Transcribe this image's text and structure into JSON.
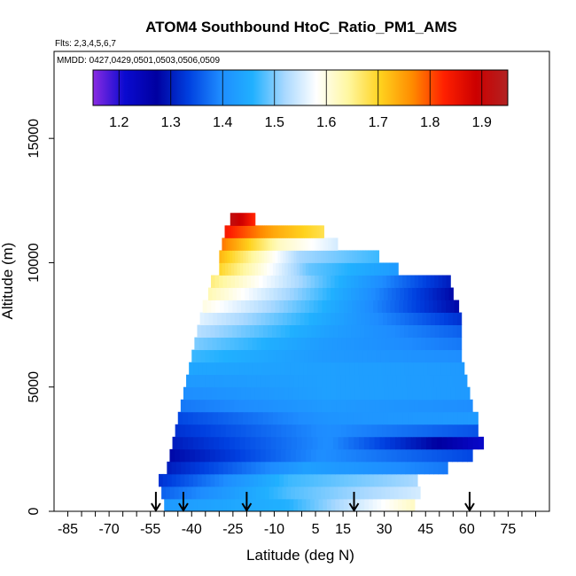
{
  "chart_data": {
    "type": "heatmap",
    "title": "ATOM4 Southbound HtoC_Ratio_PM1_AMS",
    "flights_note": "Flts: 2,3,4,5,6,7",
    "dates_note": "MMDD: 0427,0429,0501,0503,0506,0509",
    "xlabel": "Latitude (deg N)",
    "ylabel": "Altitude (m)",
    "xlim": [
      -90,
      90
    ],
    "ylim": [
      0,
      18500
    ],
    "x_ticks": [
      -85,
      -70,
      -55,
      -40,
      -25,
      -10,
      5,
      15,
      30,
      45,
      60,
      75
    ],
    "y_ticks": [
      0,
      5000,
      10000,
      15000
    ],
    "colorbar": {
      "min": 1.15,
      "max": 1.95,
      "ticks": [
        "1.2",
        "1.3",
        "1.4",
        "1.5",
        "1.6",
        "1.7",
        "1.8",
        "1.9"
      ],
      "colors": [
        "#8a2be2",
        "#0a0ad0",
        "#0000a0",
        "#0040e0",
        "#1e8cff",
        "#20b0ff",
        "#a8d8ff",
        "#ffffff",
        "#fff7a0",
        "#ffd21e",
        "#ff8c00",
        "#ff2000",
        "#cc0000",
        "#b22222"
      ]
    },
    "arrows_latitude": [
      -53,
      -43,
      -20,
      19,
      61
    ],
    "altitude_bands": [
      {
        "alt": 250,
        "lat_min": -50,
        "lat_max": 41,
        "left_value": 1.42,
        "mid_value": 1.46,
        "right_value": 1.62
      },
      {
        "alt": 750,
        "lat_min": -51,
        "lat_max": 43,
        "left_value": 1.36,
        "mid_value": 1.48,
        "right_value": 1.55
      },
      {
        "alt": 1250,
        "lat_min": -52,
        "lat_max": 42,
        "left_value": 1.32,
        "mid_value": 1.47,
        "right_value": 1.52
      },
      {
        "alt": 1750,
        "lat_min": -49,
        "lat_max": 53,
        "left_value": 1.3,
        "mid_value": 1.43,
        "right_value": 1.38
      },
      {
        "alt": 2250,
        "lat_min": -48,
        "lat_max": 62,
        "left_value": 1.28,
        "mid_value": 1.4,
        "right_value": 1.34
      },
      {
        "alt": 2750,
        "lat_min": -47,
        "lat_max": 66,
        "left_value": 1.3,
        "mid_value": 1.4,
        "right_value": 1.22
      },
      {
        "alt": 3250,
        "lat_min": -46,
        "lat_max": 64,
        "left_value": 1.32,
        "mid_value": 1.4,
        "right_value": 1.35
      },
      {
        "alt": 3750,
        "lat_min": -45,
        "lat_max": 64,
        "left_value": 1.34,
        "mid_value": 1.41,
        "right_value": 1.42
      },
      {
        "alt": 4250,
        "lat_min": -44,
        "lat_max": 62,
        "left_value": 1.38,
        "mid_value": 1.42,
        "right_value": 1.4
      },
      {
        "alt": 4750,
        "lat_min": -43,
        "lat_max": 61,
        "left_value": 1.4,
        "mid_value": 1.43,
        "right_value": 1.42
      },
      {
        "alt": 5250,
        "lat_min": -42,
        "lat_max": 60,
        "left_value": 1.42,
        "mid_value": 1.43,
        "right_value": 1.42
      },
      {
        "alt": 5750,
        "lat_min": -41,
        "lat_max": 59,
        "left_value": 1.44,
        "mid_value": 1.43,
        "right_value": 1.42
      },
      {
        "alt": 6250,
        "lat_min": -40,
        "lat_max": 58,
        "left_value": 1.47,
        "mid_value": 1.42,
        "right_value": 1.4
      },
      {
        "alt": 6750,
        "lat_min": -39,
        "lat_max": 58,
        "left_value": 1.5,
        "mid_value": 1.42,
        "right_value": 1.38
      },
      {
        "alt": 7250,
        "lat_min": -38,
        "lat_max": 58,
        "left_value": 1.53,
        "mid_value": 1.43,
        "right_value": 1.36
      },
      {
        "alt": 7750,
        "lat_min": -37,
        "lat_max": 58,
        "left_value": 1.56,
        "mid_value": 1.44,
        "right_value": 1.32
      },
      {
        "alt": 8250,
        "lat_min": -36,
        "lat_max": 57,
        "left_value": 1.6,
        "mid_value": 1.45,
        "right_value": 1.28
      },
      {
        "alt": 8750,
        "lat_min": -34,
        "lat_max": 55,
        "left_value": 1.63,
        "mid_value": 1.46,
        "right_value": 1.28
      },
      {
        "alt": 9250,
        "lat_min": -33,
        "lat_max": 54,
        "left_value": 1.66,
        "mid_value": 1.47,
        "right_value": 1.3
      },
      {
        "alt": 9750,
        "lat_min": -30,
        "lat_max": 35,
        "left_value": 1.7,
        "mid_value": 1.49,
        "right_value": 1.42
      },
      {
        "alt": 10250,
        "lat_min": -30,
        "lat_max": 28,
        "left_value": 1.73,
        "mid_value": 1.52,
        "right_value": 1.47
      },
      {
        "alt": 10750,
        "lat_min": -29,
        "lat_max": 13,
        "left_value": 1.78,
        "mid_value": 1.62,
        "right_value": 1.55
      },
      {
        "alt": 11250,
        "lat_min": -28,
        "lat_max": 8,
        "left_value": 1.84,
        "mid_value": 1.74,
        "right_value": 1.68
      },
      {
        "alt": 11750,
        "lat_min": -26,
        "lat_max": -17,
        "left_value": 1.92,
        "mid_value": 1.88,
        "right_value": 1.82
      }
    ]
  }
}
